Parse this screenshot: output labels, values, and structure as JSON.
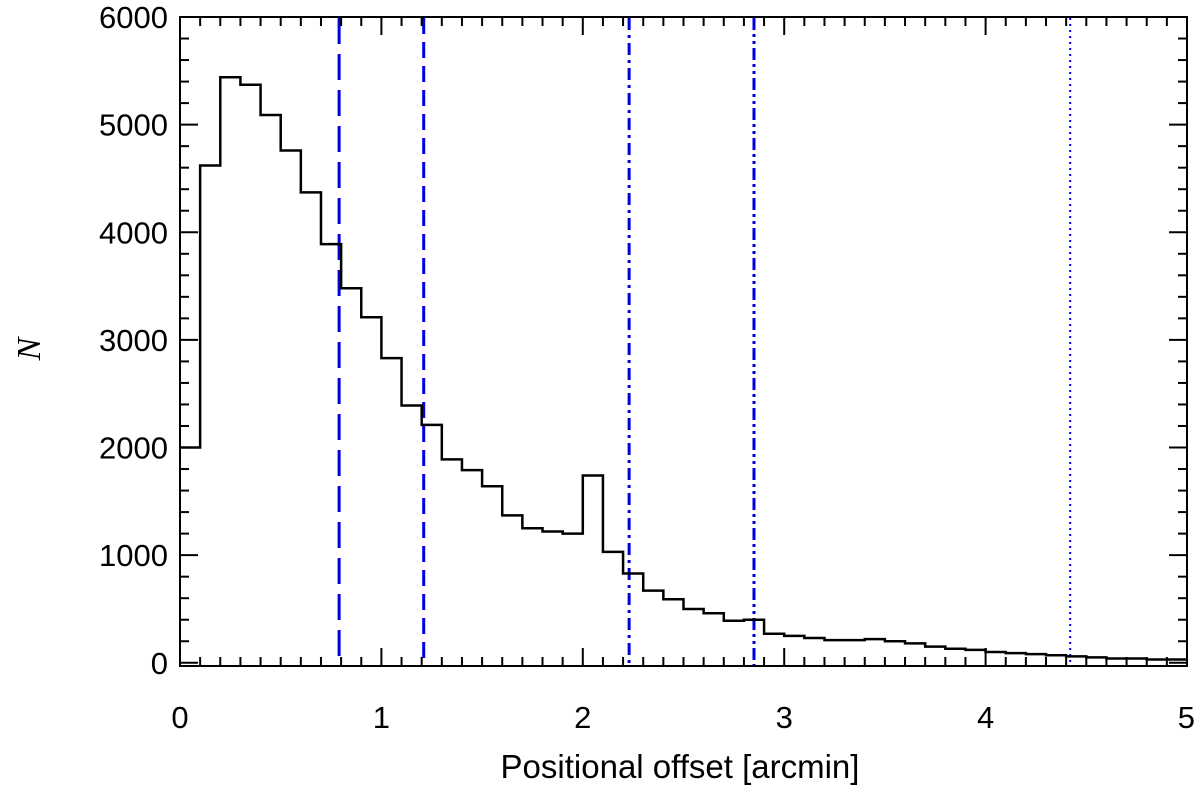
{
  "chart_data": {
    "type": "histogram",
    "title": "",
    "xlabel": "Positional offset [arcmin]",
    "ylabel": "N",
    "xlim": [
      0,
      5
    ],
    "ylim": [
      -30,
      6000
    ],
    "grid": false,
    "bin_width": 0.1,
    "bin_edges_start": 0.0,
    "values": [
      2000,
      4620,
      5440,
      5370,
      5090,
      4760,
      4370,
      3890,
      3480,
      3210,
      2830,
      2390,
      2210,
      1890,
      1790,
      1640,
      1370,
      1250,
      1220,
      1200,
      1740,
      1030,
      830,
      670,
      590,
      500,
      460,
      390,
      400,
      270,
      250,
      230,
      210,
      210,
      220,
      200,
      180,
      150,
      130,
      120,
      100,
      90,
      80,
      70,
      60,
      50,
      40,
      40,
      30,
      30
    ],
    "xticks": [
      0,
      1,
      2,
      3,
      4,
      5
    ],
    "xtick_labels": [
      "0",
      "1",
      "2",
      "3",
      "4",
      "5"
    ],
    "yticks": [
      0,
      1000,
      2000,
      3000,
      4000,
      5000,
      6000
    ],
    "ytick_labels": [
      "0",
      "1000",
      "2000",
      "3000",
      "4000",
      "5000",
      "6000"
    ],
    "vlines": [
      {
        "x": 0.79,
        "style": "long-dash"
      },
      {
        "x": 1.21,
        "style": "dash"
      },
      {
        "x": 2.23,
        "style": "dash-dot"
      },
      {
        "x": 2.85,
        "style": "dash-dot-dot"
      },
      {
        "x": 4.42,
        "style": "dot"
      }
    ],
    "colors": {
      "histogram": "#000000",
      "vlines": "#0000dd",
      "axes": "#000000"
    }
  }
}
